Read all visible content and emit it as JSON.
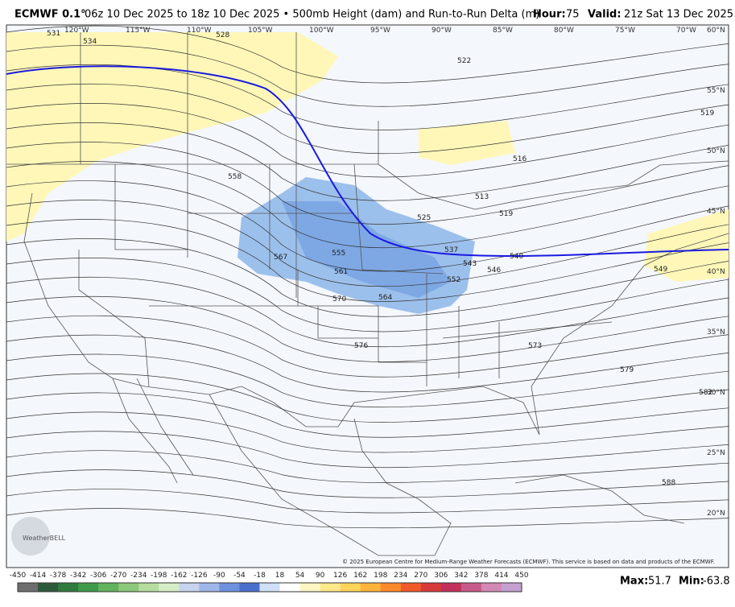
{
  "header": {
    "model": "ECMWF 0.1°",
    "description": "06z 10 Dec 2025 to 18z 10 Dec 2025 • 500mb Height (dam) and Run-to-Run Delta (m)",
    "hour_label": "Hour:",
    "hour": "75",
    "valid_label": "Valid:",
    "valid": "21z Sat 13 Dec 2025"
  },
  "map": {
    "longitude_labels": [
      "120°W",
      "115°W",
      "110°W",
      "105°W",
      "100°W",
      "95°W",
      "90°W",
      "85°W",
      "80°W",
      "75°W",
      "70°W"
    ],
    "latitude_labels": [
      "60°N",
      "55°N",
      "50°N",
      "45°N",
      "40°N",
      "35°N",
      "30°N",
      "25°N",
      "20°N"
    ],
    "contour_labels": [
      "531",
      "534",
      "528",
      "522",
      "519",
      "516",
      "513",
      "519",
      "525",
      "537",
      "543",
      "546",
      "540",
      "549",
      "558",
      "555",
      "561",
      "567",
      "570",
      "564",
      "552",
      "573",
      "576",
      "579",
      "582",
      "588"
    ],
    "logo": "WeatherBELL",
    "copyright": "© 2025 European Centre for Medium-Range Weather Forecasts (ECMWF). This service is based on data and products of the ECMWF."
  },
  "colorbar": {
    "ticks": [
      -450,
      -414,
      -378,
      -342,
      -306,
      -270,
      -234,
      -198,
      -162,
      -126,
      -90,
      -54,
      -18,
      18,
      54,
      90,
      126,
      162,
      198,
      234,
      270,
      306,
      342,
      378,
      414,
      450
    ],
    "colors": [
      "#6e6e6e",
      "#2d5a3a",
      "#2f7a3f",
      "#3f9a4a",
      "#62b35e",
      "#8cc97a",
      "#b5dd9e",
      "#d6ecc6",
      "#c7d3ef",
      "#9fb6e8",
      "#6f91dd",
      "#4a6fcf",
      "#cfe0f7",
      "#ffffff",
      "#fff6c4",
      "#ffe98a",
      "#ffd45a",
      "#ffb43a",
      "#ff8a2a",
      "#f05a28",
      "#d83a3a",
      "#c2305a",
      "#c85a8a",
      "#d488b4",
      "#c6a0d0"
    ]
  },
  "stats": {
    "max_label": "Max:",
    "max": 51.7,
    "min_label": "Min:",
    "min": -63.8
  }
}
